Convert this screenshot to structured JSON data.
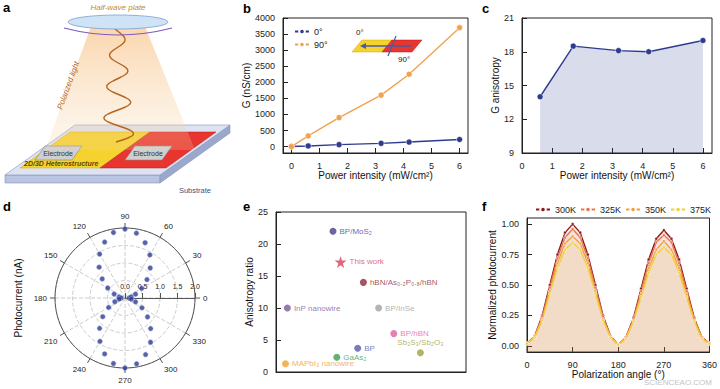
{
  "watermark": "SCIENCEAO.COM",
  "diagram": {
    "panel": "a",
    "labels": {
      "wave_plate": "Half-wave plate",
      "light": "Polarized light",
      "electrode_left": "Electrode",
      "electrode_right": "Electrode",
      "heterostructure": "2D/3D Heterostructure",
      "substrate": "Substrate"
    }
  },
  "chart_data": [
    {
      "panel": "b",
      "type": "line",
      "x_label": "Power intensity (mW/cm²)",
      "y_label": "G (nS/cm)",
      "x": [
        0,
        0.6,
        1.7,
        3.2,
        4.2,
        6
      ],
      "series": [
        {
          "name": "0°",
          "color": "#2e3b8f",
          "marker": "circle",
          "values": [
            0,
            20,
            60,
            100,
            140,
            220
          ]
        },
        {
          "name": "90°",
          "color": "#f2a24e",
          "marker": "circle",
          "values": [
            0,
            330,
            900,
            1600,
            2250,
            3700
          ]
        }
      ],
      "xlim": [
        -0.3,
        6.3
      ],
      "xticks": [
        0,
        1,
        2,
        3,
        4,
        5,
        6
      ],
      "ylim": [
        -200,
        4000
      ],
      "yticks": [
        0,
        500,
        1000,
        1500,
        2000,
        2500,
        3000,
        3500,
        4000
      ],
      "grid": false,
      "legend": "top-left",
      "annotations": [
        "0°",
        "90°"
      ]
    },
    {
      "panel": "c",
      "type": "area",
      "x_label": "Power intensity (mW/cm²)",
      "y_label": "G anisotropy",
      "x": [
        0.6,
        1.7,
        3.2,
        4.2,
        6
      ],
      "values": [
        14.0,
        18.5,
        18.1,
        18.0,
        19.0
      ],
      "color": "#2e3b8f",
      "marker": "circle",
      "xlim": [
        0,
        6.3
      ],
      "xticks": [
        0,
        1,
        2,
        3,
        4,
        5,
        6
      ],
      "ylim": [
        9,
        21
      ],
      "yticks": [
        9,
        12,
        15,
        18,
        21
      ],
      "grid": false
    },
    {
      "panel": "d",
      "type": "polar",
      "r_label": "Photocurrent (nA)",
      "theta": [
        0,
        10,
        20,
        30,
        40,
        50,
        60,
        70,
        80,
        90,
        100,
        110,
        120,
        130,
        140,
        150,
        160,
        170,
        180,
        190,
        200,
        210,
        220,
        230,
        240,
        250,
        260,
        270,
        280,
        290,
        300,
        310,
        320,
        330,
        340,
        350
      ],
      "values": [
        0.12,
        0.18,
        0.32,
        0.55,
        0.82,
        1.12,
        1.42,
        1.68,
        1.88,
        1.97,
        1.9,
        1.7,
        1.45,
        1.15,
        0.85,
        0.57,
        0.33,
        0.17,
        0.11,
        0.17,
        0.31,
        0.54,
        0.83,
        1.13,
        1.43,
        1.7,
        1.9,
        2.0,
        1.91,
        1.72,
        1.46,
        1.14,
        0.84,
        0.56,
        0.32,
        0.18
      ],
      "color": "#2e3b8f",
      "marker": "circle",
      "theta_lim": [
        0,
        360
      ],
      "theta_ticks": [
        0,
        30,
        60,
        90,
        120,
        150,
        180,
        210,
        240,
        270,
        300,
        330
      ],
      "rlim": [
        0,
        2
      ],
      "rticks": [
        {
          "value": 0,
          "label": "0.0"
        },
        {
          "value": 0.5,
          "label": "0.5"
        },
        {
          "value": 1,
          "label": "1.0"
        },
        {
          "value": 1.5,
          "label": "1.5"
        },
        {
          "value": 2,
          "label": "2.0"
        }
      ],
      "grid": true
    },
    {
      "panel": "e",
      "type": "scatter",
      "y_label": "Anisotropy ratio",
      "points": [
        {
          "name": "BP/MoS₂",
          "x": 3.0,
          "y": 22.0,
          "color": "#4a3c8c",
          "marker": "circle"
        },
        {
          "name": "This work",
          "x": 3.4,
          "y": 17.2,
          "color": "#d9425a",
          "marker": "star"
        },
        {
          "name": "hBN/As₀.₂P₀.₈/hBN",
          "x": 4.6,
          "y": 14.0,
          "color": "#8c2a3c",
          "marker": "circle"
        },
        {
          "name": "InP nanowire",
          "x": 0.6,
          "y": 10.0,
          "color": "#7a5aa0",
          "marker": "circle"
        },
        {
          "name": "BP/InSe",
          "x": 5.4,
          "y": 10.0,
          "color": "#a0a0a0",
          "marker": "circle"
        },
        {
          "name": "BP/hBN",
          "x": 6.2,
          "y": 6.0,
          "color": "#e060a0",
          "marker": "circle"
        },
        {
          "name": "GaAs₂",
          "x": 3.2,
          "y": 2.3,
          "color": "#3aa050",
          "marker": "circle"
        },
        {
          "name": "BP",
          "x": 4.3,
          "y": 3.7,
          "color": "#5a5ab0",
          "marker": "circle"
        },
        {
          "name": "MAPbI₃ nanowire",
          "x": 0.5,
          "y": 1.3,
          "color": "#f0a030",
          "marker": "circle"
        },
        {
          "name": "Sb₂S₃/Sb₂O₃",
          "x": 7.6,
          "y": 3.0,
          "color": "#a0a040",
          "marker": "circle"
        }
      ],
      "xlim": [
        0,
        10
      ],
      "ylim": [
        0,
        25
      ],
      "yticks": [
        0,
        5,
        10,
        15,
        20,
        25
      ],
      "tick_labels": "y",
      "grid": false
    },
    {
      "panel": "f",
      "type": "area",
      "x_label": "Polarization angle (°)",
      "y_label": "Normalized photocurrent",
      "x": [
        0,
        15,
        30,
        45,
        60,
        75,
        90,
        105,
        120,
        135,
        150,
        165,
        180,
        195,
        210,
        225,
        240,
        255,
        270,
        285,
        300,
        315,
        330,
        345,
        360
      ],
      "series": [
        {
          "name": "300K",
          "color": "#8b1a1a",
          "marker": "circle",
          "values": [
            0.02,
            0.08,
            0.25,
            0.5,
            0.75,
            0.93,
            1.0,
            0.93,
            0.75,
            0.5,
            0.25,
            0.08,
            0.01,
            0.07,
            0.23,
            0.47,
            0.71,
            0.88,
            0.95,
            0.88,
            0.71,
            0.47,
            0.23,
            0.07,
            0.02
          ]
        },
        {
          "name": "325K",
          "color": "#e8744a",
          "marker": "circle",
          "values": [
            0.02,
            0.08,
            0.24,
            0.48,
            0.72,
            0.89,
            0.96,
            0.89,
            0.72,
            0.48,
            0.24,
            0.08,
            0.01,
            0.07,
            0.22,
            0.45,
            0.68,
            0.85,
            0.91,
            0.85,
            0.68,
            0.45,
            0.22,
            0.07,
            0.02
          ]
        },
        {
          "name": "350K",
          "color": "#f0a040",
          "marker": "circle",
          "values": [
            0.02,
            0.07,
            0.22,
            0.45,
            0.68,
            0.84,
            0.9,
            0.84,
            0.68,
            0.45,
            0.22,
            0.07,
            0.01,
            0.06,
            0.21,
            0.42,
            0.64,
            0.79,
            0.86,
            0.79,
            0.64,
            0.42,
            0.21,
            0.06,
            0.02
          ]
        },
        {
          "name": "375K",
          "color": "#f2cf3a",
          "marker": "circle",
          "values": [
            0.02,
            0.07,
            0.21,
            0.43,
            0.64,
            0.79,
            0.85,
            0.79,
            0.64,
            0.43,
            0.21,
            0.07,
            0.01,
            0.06,
            0.2,
            0.4,
            0.6,
            0.75,
            0.81,
            0.75,
            0.6,
            0.4,
            0.2,
            0.06,
            0.02
          ]
        }
      ],
      "xlim": [
        0,
        360
      ],
      "xticks": [
        0,
        90,
        180,
        270,
        360
      ],
      "ylim": [
        -0.05,
        1.05
      ],
      "yticks": [
        {
          "value": 0,
          "label": "0.00"
        },
        {
          "value": 0.25,
          "label": "0.25"
        },
        {
          "value": 0.5,
          "label": "0.50"
        },
        {
          "value": 0.75,
          "label": "0.75"
        },
        {
          "value": 1,
          "label": "1.00"
        }
      ],
      "grid": false,
      "legend": "top"
    }
  ]
}
